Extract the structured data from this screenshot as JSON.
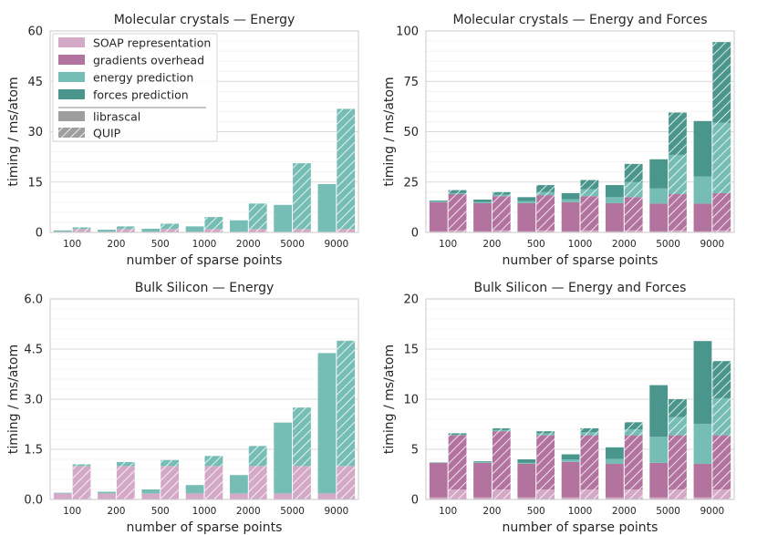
{
  "colors": {
    "soap": "#d4a9c6",
    "gradients": "#b2739f",
    "energy": "#76bdb5",
    "forces": "#4a968d",
    "legend_swatch": "#9e9e9e",
    "grid": "#e6e6e6",
    "axis": "#c8c8c8",
    "text": "#262626"
  },
  "legend": {
    "items": [
      {
        "label": "SOAP representation",
        "key": "soap"
      },
      {
        "label": "gradients overhead",
        "key": "gradients"
      },
      {
        "label": "energy prediction",
        "key": "energy"
      },
      {
        "label": "forces prediction",
        "key": "forces"
      }
    ],
    "styles": [
      {
        "label": "librascal",
        "hatched": false
      },
      {
        "label": "QUIP",
        "hatched": true
      }
    ]
  },
  "chart_data": [
    {
      "type": "bar",
      "title": "Molecular crystals — Energy",
      "xlabel": "number of sparse points",
      "ylabel": "timing / ms/atom",
      "categories": [
        "100",
        "200",
        "500",
        "1000",
        "2000",
        "5000",
        "9000"
      ],
      "ylim": [
        0,
        60
      ],
      "yticks": [
        0,
        15,
        30,
        45,
        60
      ],
      "yticklabels": [
        "0",
        "15",
        "30",
        "45",
        "60"
      ],
      "series": [
        {
          "name": "librascal",
          "hatched": false,
          "stacks": {
            "soap": [
              0.2,
              0.2,
              0.2,
              0.2,
              0.2,
              0.2,
              0.2
            ],
            "energy": [
              0.4,
              0.6,
              0.9,
              1.6,
              3.4,
              8.0,
              14.2
            ]
          }
        },
        {
          "name": "QUIP",
          "hatched": true,
          "stacks": {
            "soap": [
              1.0,
              1.0,
              1.0,
              1.0,
              1.0,
              1.0,
              1.0
            ],
            "energy": [
              0.5,
              0.8,
              1.6,
              3.6,
              7.6,
              19.6,
              35.8
            ]
          }
        }
      ]
    },
    {
      "type": "bar",
      "title": "Molecular crystals — Energy and Forces",
      "xlabel": "number of sparse points",
      "ylabel": "timing / ms/atom",
      "categories": [
        "100",
        "200",
        "500",
        "1000",
        "2000",
        "5000",
        "9000"
      ],
      "ylim": [
        0,
        100
      ],
      "yticks": [
        0,
        25,
        50,
        75,
        100
      ],
      "yticklabels": [
        "0",
        "25",
        "50",
        "75",
        "100"
      ],
      "series": [
        {
          "name": "librascal",
          "hatched": false,
          "stacks": {
            "soap": [
              0.5,
              0.5,
              0.5,
              0.5,
              0.5,
              0.5,
              0.5
            ],
            "gradients": [
              14.5,
              14.0,
              14.0,
              14.5,
              14.0,
              13.8,
              13.8
            ],
            "energy": [
              0.3,
              0.6,
              1.0,
              1.5,
              3.0,
              7.5,
              13.5
            ],
            "forces": [
              0.5,
              1.2,
              2.0,
              3.0,
              6.0,
              14.5,
              27.5
            ]
          }
        },
        {
          "name": "QUIP",
          "hatched": true,
          "stacks": {
            "soap": [
              1.0,
              1.0,
              1.0,
              1.0,
              1.0,
              1.0,
              1.0
            ],
            "gradients": [
              18.0,
              17.0,
              17.5,
              17.0,
              16.5,
              18.0,
              18.5
            ],
            "energy": [
              0.5,
              0.7,
              1.5,
              3.5,
              7.5,
              19.5,
              35.0
            ],
            "forces": [
              1.5,
              1.3,
              3.5,
              4.5,
              9.0,
              21.0,
              40.0
            ]
          }
        }
      ]
    },
    {
      "type": "bar",
      "title": "Bulk Silicon — Energy",
      "xlabel": "number of sparse points",
      "ylabel": "timing / ms/atom",
      "categories": [
        "100",
        "200",
        "500",
        "1000",
        "2000",
        "5000",
        "9000"
      ],
      "ylim": [
        0,
        6
      ],
      "yticks": [
        0,
        1.5,
        3,
        4.5,
        6
      ],
      "yticklabels": [
        "0.0",
        "1.5",
        "3.0",
        "4.5",
        "6.0"
      ],
      "series": [
        {
          "name": "librascal",
          "hatched": false,
          "stacks": {
            "soap": [
              0.18,
              0.18,
              0.18,
              0.18,
              0.18,
              0.18,
              0.18
            ],
            "energy": [
              0.02,
              0.05,
              0.12,
              0.25,
              0.55,
              2.12,
              4.2
            ]
          }
        },
        {
          "name": "QUIP",
          "hatched": true,
          "stacks": {
            "soap": [
              1.0,
              1.0,
              1.0,
              1.0,
              1.0,
              1.0,
              1.0
            ],
            "energy": [
              0.05,
              0.12,
              0.18,
              0.3,
              0.6,
              1.75,
              3.75
            ]
          }
        }
      ]
    },
    {
      "type": "bar",
      "title": "Bulk Silicon — Energy and Forces",
      "xlabel": "number of sparse points",
      "ylabel": "timing / ms/atom",
      "categories": [
        "100",
        "200",
        "500",
        "1000",
        "2000",
        "5000",
        "9000"
      ],
      "ylim": [
        0,
        20
      ],
      "yticks": [
        0,
        5,
        10,
        15,
        20
      ],
      "yticklabels": [
        "0",
        "5",
        "10",
        "15",
        "20"
      ],
      "series": [
        {
          "name": "librascal",
          "hatched": false,
          "stacks": {
            "soap": [
              0.2,
              0.2,
              0.2,
              0.2,
              0.2,
              0.2,
              0.2
            ],
            "gradients": [
              3.45,
              3.45,
              3.35,
              3.55,
              3.35,
              3.45,
              3.35
            ],
            "energy": [
              0.03,
              0.05,
              0.1,
              0.25,
              0.5,
              2.6,
              4.0
            ],
            "forces": [
              0.02,
              0.1,
              0.35,
              0.5,
              1.15,
              5.15,
              8.25
            ]
          }
        },
        {
          "name": "QUIP",
          "hatched": true,
          "stacks": {
            "soap": [
              1.0,
              1.0,
              1.0,
              1.0,
              1.0,
              1.0,
              1.0
            ],
            "gradients": [
              5.4,
              5.8,
              5.4,
              5.4,
              5.4,
              5.4,
              5.4
            ],
            "energy": [
              0.05,
              0.12,
              0.2,
              0.3,
              0.6,
              1.8,
              3.7
            ],
            "forces": [
              0.15,
              0.18,
              0.2,
              0.4,
              0.7,
              1.8,
              3.7
            ]
          }
        }
      ]
    }
  ]
}
